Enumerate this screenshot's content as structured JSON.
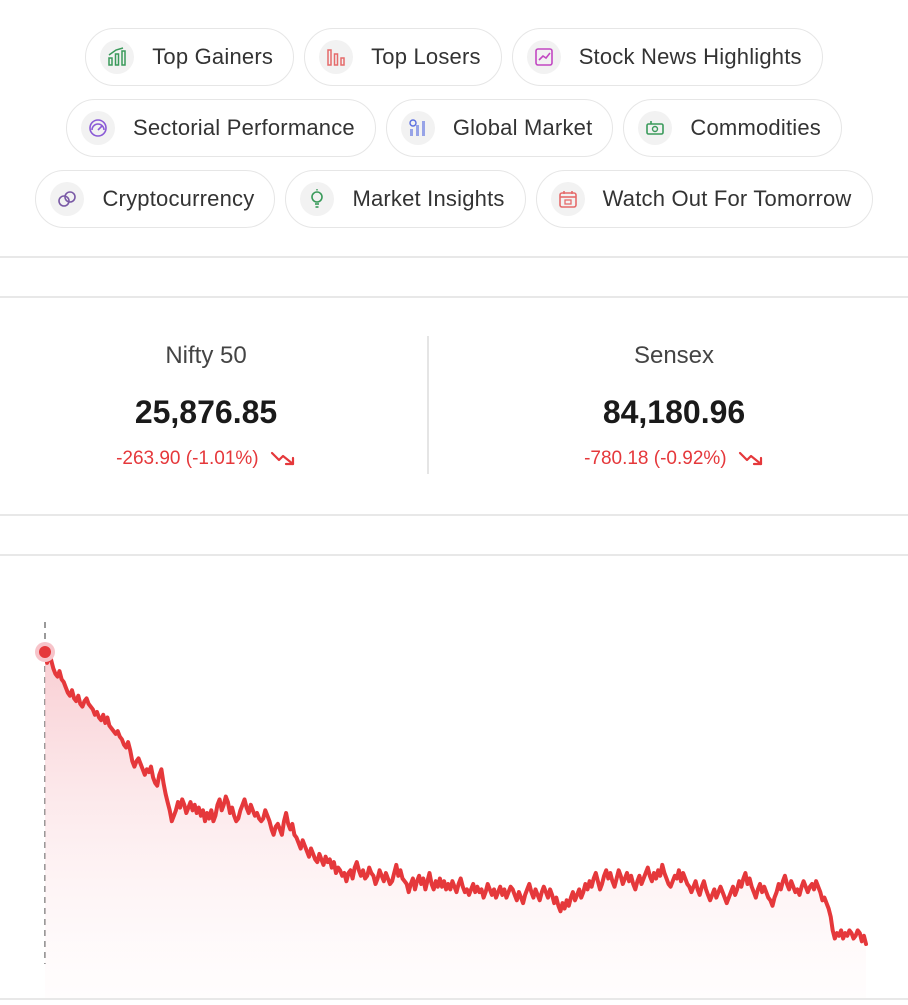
{
  "quick_links": [
    {
      "label": "Top Gainers",
      "icon": "gainers-bar-icon",
      "color": "#3a9a5b"
    },
    {
      "label": "Top Losers",
      "icon": "losers-bar-icon",
      "color": "#e56b6b"
    },
    {
      "label": "Stock News Highlights",
      "icon": "news-chart-icon",
      "color": "#c248c2"
    },
    {
      "label": "Sectorial Performance",
      "icon": "sector-gauge-icon",
      "color": "#8a5ad6"
    },
    {
      "label": "Global Market",
      "icon": "globe-chart-icon",
      "color": "#5a6ee0"
    },
    {
      "label": "Commodities",
      "icon": "commodity-money-icon",
      "color": "#3a9a5b"
    },
    {
      "label": "Cryptocurrency",
      "icon": "crypto-coins-icon",
      "color": "#7a5aa6"
    },
    {
      "label": "Market Insights",
      "icon": "insight-bulb-icon",
      "color": "#3a9a5b"
    },
    {
      "label": "Watch Out For Tomorrow",
      "icon": "calendar-icon",
      "color": "#e56b6b"
    }
  ],
  "indices": [
    {
      "name": "Nifty 50",
      "value": "25,876.85",
      "change": "-263.90 (-1.01%)",
      "trend": "down"
    },
    {
      "name": "Sensex",
      "value": "84,180.96",
      "change": "-780.18 (-0.92%)",
      "trend": "down"
    }
  ],
  "colors": {
    "negative": "#e5383b",
    "fill_top": "#fbd9dc",
    "border": "#e6e6e6"
  },
  "chart_data": {
    "type": "area",
    "series": [
      {
        "values": [
          100,
          96,
          99,
          97,
          94,
          92,
          91,
          93,
          90,
          89,
          87,
          85,
          84,
          86,
          83,
          82,
          84,
          81,
          80,
          82,
          83,
          81,
          80,
          79,
          77,
          78,
          76,
          75,
          77,
          74,
          76,
          73,
          72,
          71,
          70,
          71,
          69,
          68,
          66,
          65,
          67,
          64,
          60,
          58,
          60,
          61,
          59,
          57,
          55,
          57,
          56,
          58,
          54,
          52,
          51,
          55,
          57,
          52,
          48,
          45,
          42,
          38,
          40,
          42,
          45,
          43,
          46,
          44,
          41,
          43,
          45,
          42,
          44,
          41,
          43,
          40,
          42,
          38,
          41,
          39,
          42,
          38,
          40,
          44,
          46,
          42,
          44,
          47,
          45,
          41,
          43,
          40,
          38,
          39,
          42,
          44,
          46,
          43,
          41,
          44,
          42,
          40,
          41,
          39,
          38,
          39,
          42,
          40,
          38,
          35,
          33,
          36,
          37,
          35,
          33,
          38,
          41,
          37,
          35,
          37,
          33,
          32,
          30,
          28,
          31,
          29,
          27,
          25,
          28,
          26,
          24,
          23,
          26,
          24,
          22,
          25,
          23,
          24,
          21,
          23,
          19,
          21,
          20,
          18,
          19,
          16,
          19,
          20,
          17,
          21,
          23,
          20,
          18,
          20,
          17,
          18,
          21,
          19,
          18,
          15,
          17,
          20,
          18,
          16,
          19,
          17,
          15,
          16,
          19,
          22,
          18,
          20,
          17,
          16,
          15,
          12,
          15,
          17,
          13,
          16,
          18,
          15,
          17,
          13,
          16,
          19,
          15,
          13,
          16,
          14,
          17,
          14,
          16,
          13,
          15,
          13,
          16,
          14,
          12,
          15,
          17,
          14,
          12,
          13,
          11,
          13,
          15,
          12,
          14,
          12,
          13,
          10,
          12,
          15,
          13,
          11,
          13,
          10,
          12,
          14,
          11,
          13,
          10,
          12,
          14,
          13,
          11,
          9,
          12,
          10,
          8,
          11,
          13,
          15,
          12,
          10,
          13,
          11,
          9,
          12,
          14,
          12,
          10,
          13,
          11,
          8,
          10,
          7,
          5,
          8,
          6,
          9,
          7,
          10,
          12,
          9,
          11,
          13,
          10,
          12,
          15,
          13,
          16,
          14,
          17,
          19,
          16,
          13,
          15,
          18,
          20,
          17,
          19,
          16,
          14,
          17,
          20,
          18,
          15,
          17,
          19,
          16,
          18,
          15,
          13,
          16,
          18,
          15,
          17,
          19,
          21,
          18,
          16,
          19,
          17,
          20,
          18,
          22,
          19,
          17,
          15,
          14,
          16,
          18,
          17,
          20,
          16,
          19,
          17,
          15,
          14,
          12,
          14,
          16,
          13,
          11,
          14,
          16,
          13,
          11,
          9,
          11,
          13,
          10,
          12,
          14,
          12,
          10,
          8,
          10,
          12,
          14,
          11,
          13,
          16,
          14,
          17,
          19,
          15,
          17,
          14,
          12,
          10,
          13,
          15,
          12,
          14,
          12,
          10,
          9,
          7,
          10,
          12,
          15,
          13,
          16,
          18,
          15,
          13,
          16,
          14,
          12,
          13,
          11,
          14,
          16,
          14,
          12,
          14,
          15,
          13,
          16,
          14,
          12,
          9,
          10,
          8,
          6,
          3,
          -2,
          -5,
          -3,
          -4,
          -2,
          -5,
          -3,
          -4,
          -2,
          -3,
          -5,
          -4,
          -2,
          -3,
          -6,
          -4,
          -7
        ]
      }
    ],
    "grid": false
  }
}
